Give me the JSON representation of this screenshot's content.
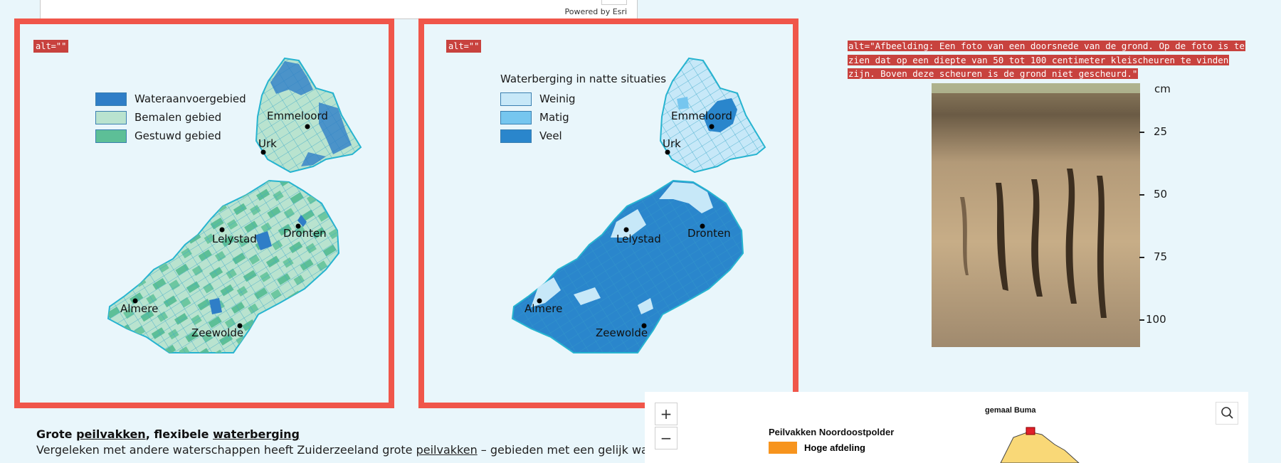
{
  "top_map": {
    "powered_by": "Powered by Esri"
  },
  "map_left": {
    "alt_tag": "alt=\"\"",
    "legend": [
      {
        "label": "Wateraanvoergebied",
        "color": "#2f7ec7"
      },
      {
        "label": "Bemalen gebied",
        "color": "#b9e3cf"
      },
      {
        "label": "Gestuwd gebied",
        "color": "#5dbf97"
      }
    ],
    "towns": [
      "Emmeloord",
      "Urk",
      "Lelystad",
      "Dronten",
      "Almere",
      "Zeewolde"
    ]
  },
  "map_right": {
    "alt_tag": "alt=\"\"",
    "legend_title": "Waterberging in natte situaties",
    "legend": [
      {
        "label": "Weinig",
        "color": "#c7e8f8"
      },
      {
        "label": "Matig",
        "color": "#76c6ef"
      },
      {
        "label": "Veel",
        "color": "#2a86cc"
      }
    ],
    "towns": [
      "Emmeloord",
      "Urk",
      "Lelystad",
      "Dronten",
      "Almere",
      "Zeewolde"
    ]
  },
  "photo": {
    "alt_text": "alt=\"Afbeelding: Een foto van een doorsnede van de grond. Op de foto is te zien dat op een diepte van 50 tot 100 centimeter kleischeuren te vinden zijn. Boven deze scheuren is de grond niet gescheurd.\"",
    "scale_unit": "cm",
    "scale_ticks": [
      "25",
      "50",
      "75",
      "100"
    ]
  },
  "text": {
    "heading_pre": "Grote ",
    "heading_link1": "peilvakken",
    "heading_mid": ", flexibele ",
    "heading_link2": "waterberging",
    "para_pre": "Vergeleken met andere waterschappen heeft Zuiderzeeland grote ",
    "para_link": "peilvakken",
    "para_post": " – gebieden met een gelijk waterpeil."
  },
  "bottom_map": {
    "zoom_in": "+",
    "zoom_out": "−",
    "title": "Peilvakken Noordoostpolder",
    "legend_item": "Hoge afdeling",
    "legend_color": "#f7941d",
    "pump_label": "gemaal Buma"
  }
}
